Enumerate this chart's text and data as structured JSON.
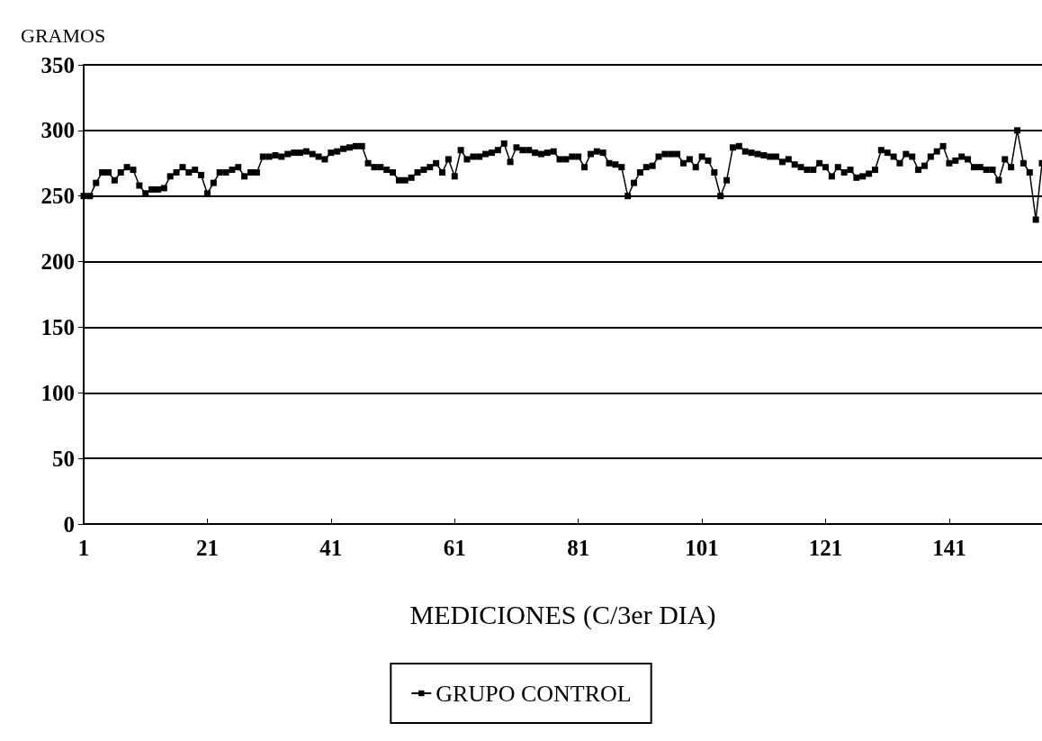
{
  "chart_data": {
    "type": "line",
    "ylabel": "GRAMOS",
    "xlabel": "MEDICIONES (C/3er DIA)",
    "x": [
      1,
      2,
      3,
      4,
      5,
      6,
      7,
      8,
      9,
      10,
      11,
      12,
      13,
      14,
      15,
      16,
      17,
      18,
      19,
      20,
      21,
      22,
      23,
      24,
      25,
      26,
      27,
      28,
      29,
      30,
      31,
      32,
      33,
      34,
      35,
      36,
      37,
      38,
      39,
      40,
      41,
      42,
      43,
      44,
      45,
      46,
      47,
      48,
      49,
      50,
      51,
      52,
      53,
      54,
      55,
      56,
      57,
      58,
      59,
      60,
      61,
      62,
      63,
      64,
      65,
      66,
      67,
      68,
      69,
      70,
      71,
      72,
      73,
      74,
      75,
      76,
      77,
      78,
      79,
      80,
      81,
      82,
      83,
      84,
      85,
      86,
      87,
      88,
      89,
      90,
      91,
      92,
      93,
      94,
      95,
      96,
      97,
      98,
      99,
      100,
      101,
      102,
      103,
      104,
      105,
      106,
      107,
      108,
      109,
      110,
      111,
      112,
      113,
      114,
      115,
      116,
      117,
      118,
      119,
      120,
      121,
      122,
      123,
      124,
      125,
      126,
      127,
      128,
      129,
      130,
      131,
      132,
      133,
      134,
      135,
      136,
      137,
      138,
      139,
      140,
      141,
      142,
      143,
      144,
      145,
      146,
      147,
      148,
      149,
      150,
      151,
      152,
      153,
      154,
      155,
      156
    ],
    "series": [
      {
        "name": "GRUPO CONTROL",
        "color": "#000000",
        "values": [
          250,
          250,
          260,
          268,
          268,
          262,
          268,
          272,
          270,
          258,
          252,
          255,
          255,
          256,
          265,
          268,
          272,
          268,
          270,
          266,
          252,
          260,
          268,
          268,
          270,
          272,
          265,
          268,
          268,
          280,
          280,
          281,
          280,
          282,
          283,
          283,
          284,
          282,
          280,
          278,
          283,
          284,
          286,
          287,
          288,
          288,
          275,
          272,
          272,
          270,
          268,
          262,
          262,
          264,
          268,
          270,
          272,
          275,
          268,
          278,
          265,
          285,
          278,
          280,
          280,
          282,
          283,
          285,
          290,
          276,
          287,
          285,
          285,
          283,
          282,
          283,
          284,
          278,
          278,
          280,
          280,
          272,
          282,
          284,
          283,
          275,
          274,
          272,
          250,
          260,
          268,
          272,
          273,
          280,
          282,
          282,
          282,
          275,
          278,
          272,
          280,
          277,
          268,
          250,
          262,
          287,
          288,
          284,
          283,
          282,
          281,
          280,
          280,
          276,
          278,
          274,
          272,
          270,
          270,
          275,
          272,
          265,
          272,
          268,
          270,
          264,
          265,
          267,
          270,
          285,
          283,
          280,
          275,
          282,
          280,
          270,
          273,
          280,
          284,
          288,
          275,
          277,
          280,
          278,
          272,
          272,
          270,
          270,
          262,
          278,
          272,
          300,
          275,
          268,
          232,
          275
        ]
      }
    ],
    "xlim": [
      1,
      156
    ],
    "xticks": [
      1,
      21,
      41,
      61,
      81,
      101,
      121,
      141
    ],
    "ylim": [
      0,
      350
    ],
    "yticks": [
      0,
      50,
      100,
      150,
      200,
      250,
      300,
      350
    ],
    "grid": "y",
    "legend": "bottom",
    "marker": "square",
    "line_style": "solid"
  }
}
